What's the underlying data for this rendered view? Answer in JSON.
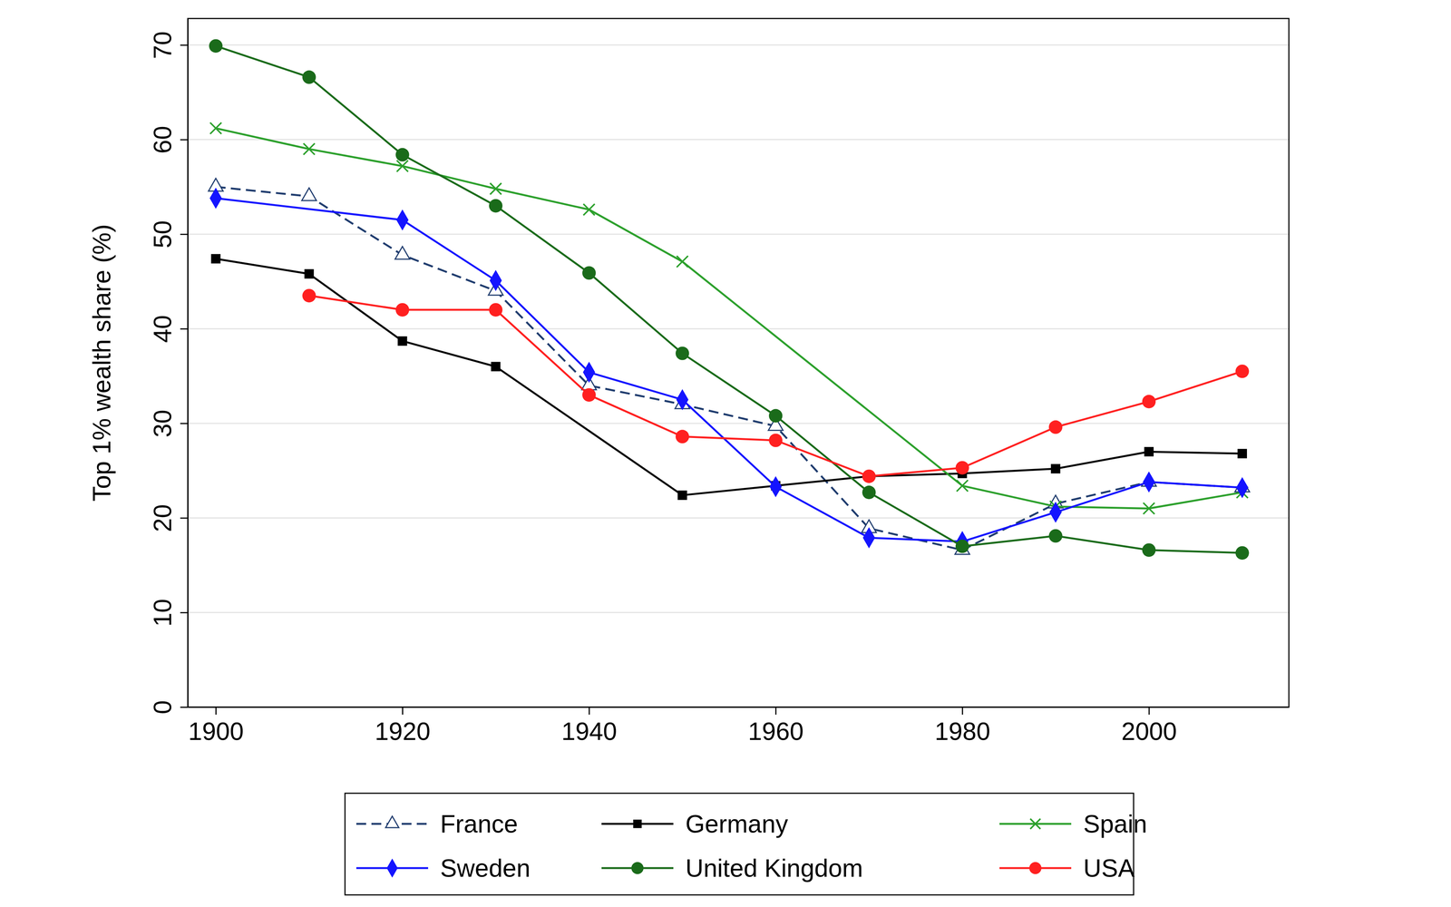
{
  "chart_data": {
    "type": "line",
    "y_label": "Top 1% wealth share (%)",
    "xlim": [
      1897,
      2015
    ],
    "xticks": [
      1900,
      1920,
      1940,
      1960,
      1980,
      2000
    ],
    "ylim": [
      0,
      72.8
    ],
    "yticks": [
      0,
      10,
      20,
      30,
      40,
      50,
      60,
      70
    ],
    "grid": true,
    "legend": "bottom",
    "series": [
      {
        "name": "France",
        "color": "#1f3c6e",
        "marker": "triangle-open",
        "line_style": "dashed",
        "x": [
          1900,
          1910,
          1920,
          1930,
          1940,
          1950,
          1960,
          1970,
          1980,
          1990,
          2000,
          2010
        ],
        "values": [
          55,
          54,
          47.8,
          44,
          34,
          32,
          29.7,
          18.9,
          16.6,
          21.5,
          23.8,
          23.2
        ]
      },
      {
        "name": "Germany",
        "color": "#000000",
        "marker": "square",
        "line_style": "solid",
        "x": [
          1900,
          1910,
          1920,
          1930,
          1950,
          1960,
          1970,
          1980,
          1990,
          2000,
          2010
        ],
        "values": [
          47.4,
          45.8,
          38.7,
          36,
          22.4,
          23.4,
          24.4,
          24.7,
          25.2,
          27,
          26.8
        ]
      },
      {
        "name": "Spain",
        "color": "#2ca02c",
        "marker": "x",
        "line_style": "solid",
        "x": [
          1900,
          1910,
          1920,
          1930,
          1940,
          1950,
          1980,
          1990,
          2000,
          2010
        ],
        "values": [
          61.2,
          59,
          57.2,
          54.8,
          52.6,
          47.1,
          23.4,
          21.2,
          21,
          22.7
        ]
      },
      {
        "name": "Sweden",
        "color": "#1414ff",
        "marker": "diamond",
        "line_style": "solid",
        "x": [
          1900,
          1920,
          1930,
          1940,
          1950,
          1960,
          1970,
          1980,
          1990,
          2000,
          2010
        ],
        "values": [
          53.8,
          51.5,
          45.1,
          35.4,
          32.5,
          23.3,
          17.9,
          17.5,
          20.6,
          23.8,
          23.2
        ]
      },
      {
        "name": "United Kingdom",
        "color": "#1a6b1a",
        "marker": "circle",
        "line_style": "solid",
        "x": [
          1900,
          1910,
          1920,
          1930,
          1940,
          1950,
          1960,
          1970,
          1980,
          1990,
          2000,
          2010
        ],
        "values": [
          69.9,
          66.6,
          58.4,
          53,
          45.9,
          37.4,
          30.8,
          22.7,
          17,
          18.1,
          16.6,
          16.3
        ]
      },
      {
        "name": "USA",
        "color": "#ff2020",
        "marker": "circle",
        "line_style": "solid",
        "x": [
          1910,
          1920,
          1930,
          1940,
          1950,
          1960,
          1970,
          1980,
          1990,
          2000,
          2010
        ],
        "values": [
          43.5,
          42,
          42,
          33,
          28.6,
          28.2,
          24.4,
          25.3,
          29.6,
          32.3,
          35.5
        ]
      }
    ]
  }
}
